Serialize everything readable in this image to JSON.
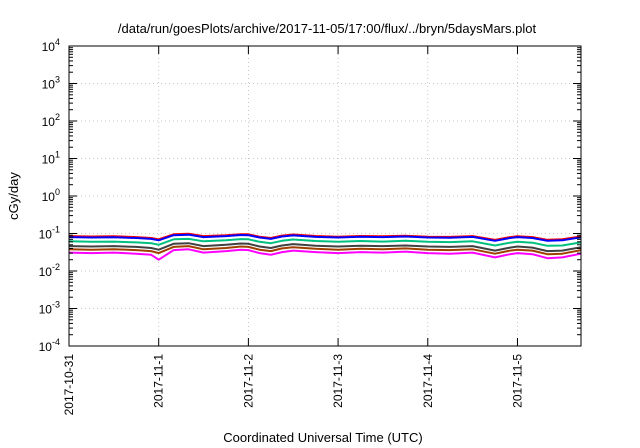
{
  "chart_data": {
    "type": "line",
    "title": "/data/run/goesPlots/archive/2017-11-05/17:00/flux/../bryn/5daysMars.plot",
    "xlabel": "Coordinated Universal Time (UTC)",
    "ylabel": "cGy/day",
    "yscale": "log",
    "ylim": [
      0.0001,
      10000
    ],
    "y_ticks": [
      {
        "base": "10",
        "exp": "-4"
      },
      {
        "base": "10",
        "exp": "-3"
      },
      {
        "base": "10",
        "exp": "-2"
      },
      {
        "base": "10",
        "exp": "-1"
      },
      {
        "base": "10",
        "exp": "0"
      },
      {
        "base": "10",
        "exp": "1"
      },
      {
        "base": "10",
        "exp": "2"
      },
      {
        "base": "10",
        "exp": "3"
      },
      {
        "base": "10",
        "exp": "4"
      }
    ],
    "xlim": [
      "2017-10-31T00:00",
      "2017-11-05T17:00"
    ],
    "x_ticks": [
      "2017-10-31",
      "2017-11-1",
      "2017-11-2",
      "2017-11-3",
      "2017-11-4",
      "2017-11-5"
    ],
    "grid": true,
    "legend": "none",
    "x": [
      "2017-10-31T00:00",
      "2017-10-31T06:00",
      "2017-10-31T12:00",
      "2017-10-31T18:00",
      "2017-10-31T22:00",
      "2017-11-01T00:00",
      "2017-11-01T04:00",
      "2017-11-01T08:00",
      "2017-11-01T12:00",
      "2017-11-01T18:00",
      "2017-11-01T22:00",
      "2017-11-02T00:00",
      "2017-11-02T03:00",
      "2017-11-02T06:00",
      "2017-11-02T09:00",
      "2017-11-02T12:00",
      "2017-11-02T18:00",
      "2017-11-03T00:00",
      "2017-11-03T06:00",
      "2017-11-03T12:00",
      "2017-11-03T18:00",
      "2017-11-04T00:00",
      "2017-11-04T06:00",
      "2017-11-04T12:00",
      "2017-11-04T18:00",
      "2017-11-04T22:00",
      "2017-11-05T00:00",
      "2017-11-05T04:00",
      "2017-11-05T08:00",
      "2017-11-05T12:00",
      "2017-11-05T17:00"
    ],
    "series": [
      {
        "color": "#ff0000",
        "values": [
          0.085,
          0.083,
          0.084,
          0.08,
          0.076,
          0.07,
          0.095,
          0.098,
          0.085,
          0.09,
          0.096,
          0.095,
          0.082,
          0.076,
          0.088,
          0.094,
          0.086,
          0.082,
          0.086,
          0.084,
          0.087,
          0.082,
          0.081,
          0.085,
          0.068,
          0.08,
          0.084,
          0.08,
          0.068,
          0.07,
          0.083
        ]
      },
      {
        "color": "#0000ff",
        "values": [
          0.08,
          0.078,
          0.079,
          0.076,
          0.072,
          0.066,
          0.09,
          0.093,
          0.08,
          0.085,
          0.091,
          0.09,
          0.078,
          0.072,
          0.083,
          0.089,
          0.081,
          0.078,
          0.082,
          0.08,
          0.083,
          0.078,
          0.077,
          0.081,
          0.064,
          0.076,
          0.08,
          0.076,
          0.064,
          0.066,
          0.079
        ]
      },
      {
        "color": "#00c080",
        "values": [
          0.062,
          0.06,
          0.061,
          0.058,
          0.055,
          0.05,
          0.07,
          0.072,
          0.062,
          0.066,
          0.071,
          0.07,
          0.06,
          0.055,
          0.064,
          0.069,
          0.063,
          0.06,
          0.063,
          0.061,
          0.064,
          0.06,
          0.059,
          0.062,
          0.048,
          0.057,
          0.06,
          0.057,
          0.047,
          0.048,
          0.058
        ]
      },
      {
        "color": "#404040",
        "values": [
          0.046,
          0.045,
          0.046,
          0.044,
          0.041,
          0.037,
          0.053,
          0.055,
          0.046,
          0.05,
          0.054,
          0.053,
          0.045,
          0.041,
          0.048,
          0.052,
          0.047,
          0.045,
          0.047,
          0.046,
          0.048,
          0.045,
          0.044,
          0.046,
          0.035,
          0.042,
          0.045,
          0.042,
          0.034,
          0.035,
          0.043
        ]
      },
      {
        "color": "#a04000",
        "values": [
          0.038,
          0.037,
          0.038,
          0.036,
          0.034,
          0.03,
          0.044,
          0.046,
          0.038,
          0.041,
          0.045,
          0.044,
          0.037,
          0.034,
          0.04,
          0.043,
          0.039,
          0.037,
          0.039,
          0.038,
          0.04,
          0.037,
          0.036,
          0.038,
          0.029,
          0.035,
          0.037,
          0.035,
          0.028,
          0.029,
          0.036
        ]
      },
      {
        "color": "#ff00ff",
        "values": [
          0.031,
          0.03,
          0.031,
          0.029,
          0.027,
          0.02,
          0.036,
          0.038,
          0.031,
          0.034,
          0.037,
          0.036,
          0.03,
          0.027,
          0.032,
          0.035,
          0.032,
          0.03,
          0.032,
          0.031,
          0.033,
          0.03,
          0.029,
          0.031,
          0.023,
          0.028,
          0.03,
          0.028,
          0.022,
          0.023,
          0.029
        ]
      }
    ]
  }
}
